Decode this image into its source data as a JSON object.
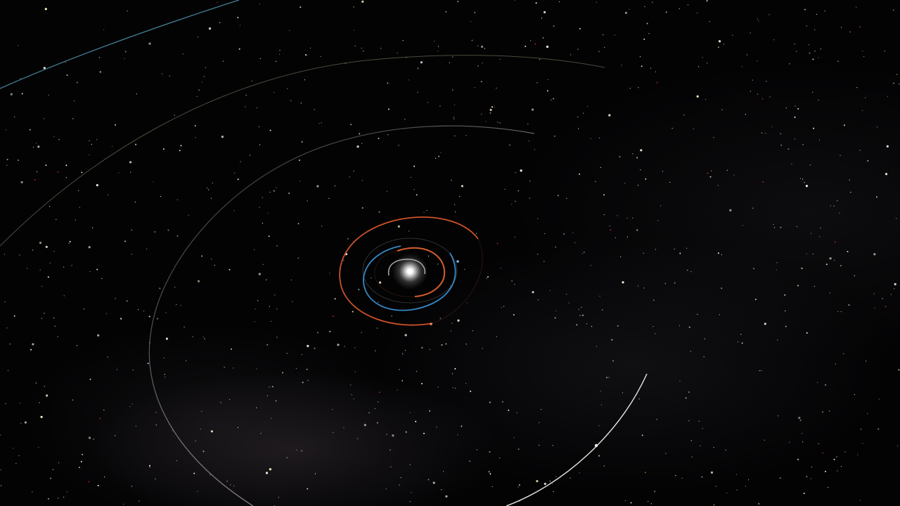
{
  "scene": {
    "type": "solar-system-orbit-view",
    "background_color": "#030304",
    "star_count_visible": "many",
    "sun_color": "#ffffff"
  },
  "orbits": [
    {
      "id": "inner-gray",
      "color": "#b9b3ad"
    },
    {
      "id": "orange-small",
      "color": "#e0642c"
    },
    {
      "id": "blue",
      "color": "#3a8fd0"
    },
    {
      "id": "orange-large",
      "color": "#d8552a"
    },
    {
      "id": "faint-gray",
      "color": "#6b6f74"
    },
    {
      "id": "large-white",
      "color": "#d9d4d0"
    },
    {
      "id": "outer-olive",
      "color": "#6c6a52"
    },
    {
      "id": "outermost-teal",
      "color": "#4c8fa8"
    }
  ]
}
